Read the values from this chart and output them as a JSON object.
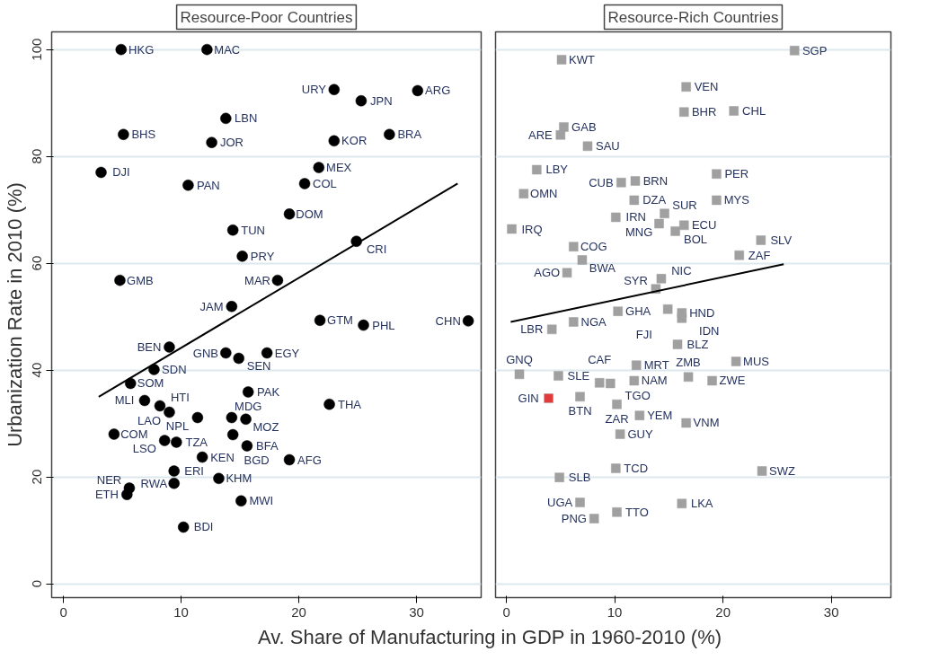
{
  "chart_data": [
    {
      "type": "scatter",
      "title": "Resource-Poor Countries",
      "xlabel": "Av. Share of Manufacturing in GDP in 1960-2010 (%)",
      "ylabel": "Urbanization Rate in 2010 (%)",
      "grid": "y",
      "xlim": [
        -1,
        35.5
      ],
      "ylim": [
        -2.6,
        103.3
      ],
      "xticks": [
        0,
        10,
        20,
        30
      ],
      "yticks": [
        0,
        20,
        40,
        60,
        80,
        100
      ],
      "series": [
        {
          "type": "scatter",
          "marker": "circle",
          "color": "#000000",
          "x": [
            4.9,
            12.2,
            23.0,
            25.3,
            30.1,
            13.8,
            5.1,
            12.6,
            23.0,
            27.7,
            3.2,
            21.7,
            10.6,
            20.5,
            19.2,
            14.4,
            24.9,
            15.2,
            4.8,
            18.2,
            14.3,
            34.4,
            21.8,
            25.5,
            9.0,
            13.8,
            14.9,
            17.3,
            7.7,
            5.7,
            15.7,
            6.9,
            22.6,
            8.2,
            9.0,
            11.4,
            14.3,
            15.5,
            4.3,
            8.6,
            9.6,
            14.4,
            15.6,
            11.8,
            19.2,
            9.4,
            13.2,
            9.4,
            5.6,
            5.4,
            15.1,
            10.2
          ],
          "values": [
            100,
            100,
            92.5,
            90.4,
            92.3,
            87.1,
            84.1,
            82.6,
            82.9,
            84.1,
            77.0,
            77.9,
            74.6,
            74.9,
            69.2,
            66.2,
            64.1,
            61.3,
            56.8,
            56.8,
            51.9,
            49.2,
            49.3,
            48.4,
            44.3,
            43.2,
            42.2,
            43.2,
            40.1,
            37.5,
            35.9,
            34.3,
            33.6,
            33.3,
            32.1,
            31.1,
            31.1,
            30.8,
            28.0,
            26.8,
            26.5,
            27.9,
            25.8,
            23.7,
            23.2,
            21.1,
            19.7,
            18.8,
            17.9,
            16.7,
            15.5,
            10.6
          ],
          "value_labels": [
            "HKG",
            "MAC",
            "URY",
            "JPN",
            "ARG",
            "LBN",
            "BHS",
            "JOR",
            "KOR",
            "BRA",
            "DJI",
            "MEX",
            "PAN",
            "COL",
            "DOM",
            "TUN",
            "CRI",
            "PRY",
            "GMB",
            "MAR",
            "JAM",
            "CHN",
            "GTM",
            "PHL",
            "BEN",
            "GNB",
            "SEN",
            "EGY",
            "SDN",
            "SOM",
            "PAK",
            "MLI",
            "THA",
            "HTI",
            "LAO",
            "NPL",
            "MDG",
            "MOZ",
            "COM",
            "LSO",
            "TZA",
            "BGD",
            "BFA",
            "KEN",
            "AFG",
            "ERI",
            "KHM",
            "RWA",
            "NER",
            "ETH",
            "MWI",
            "BDI"
          ]
        },
        {
          "type": "line",
          "marker": "none",
          "color": "#000000",
          "x": [
            3.0,
            33.5
          ],
          "values": [
            35.0,
            74.9
          ]
        }
      ]
    },
    {
      "type": "scatter",
      "title": "Resource-Rich Countries",
      "grid": "y",
      "xlim": [
        -1,
        35.5
      ],
      "ylim": [
        -2.6,
        103.3
      ],
      "xticks": [
        0,
        10,
        20,
        30
      ],
      "yticks": [
        0,
        20,
        40,
        60,
        80,
        100
      ],
      "tick_labels": "x",
      "series": [
        {
          "type": "scatter",
          "marker": "square",
          "color": "#a0a0a0",
          "x": [
            26.6,
            5.1,
            16.6,
            16.4,
            21.0,
            5.3,
            5.0,
            7.5,
            2.8,
            19.4,
            10.6,
            11.9,
            1.6,
            11.8,
            19.4,
            10.1,
            14.6,
            14.1,
            15.6,
            16.4,
            0.5,
            6.2,
            23.5,
            7.0,
            21.5,
            5.6,
            14.3,
            13.8,
            10.3,
            14.9,
            16.2,
            16.2,
            6.2,
            4.2,
            15.8,
            21.2,
            12.0,
            1.2,
            4.8,
            8.6,
            9.6,
            11.8,
            16.8,
            19.0,
            3.9,
            6.8,
            10.2,
            12.3,
            16.6,
            10.5,
            10.1,
            23.6,
            4.9,
            6.8,
            16.2,
            10.2,
            8.1
          ],
          "values": [
            99.8,
            98.1,
            93.0,
            88.3,
            88.5,
            85.5,
            84.0,
            81.9,
            77.5,
            76.7,
            75.1,
            75.4,
            73.0,
            71.8,
            71.8,
            68.6,
            69.3,
            67.4,
            66.0,
            67.1,
            66.4,
            63.1,
            64.3,
            60.6,
            61.5,
            58.2,
            57.1,
            55.2,
            51.0,
            51.4,
            50.7,
            49.7,
            49.0,
            47.6,
            44.8,
            41.6,
            40.9,
            39.2,
            38.9,
            37.6,
            37.5,
            38.0,
            38.7,
            38.0,
            34.7,
            35.0,
            33.6,
            31.5,
            30.1,
            28.0,
            21.6,
            21.1,
            19.9,
            15.2,
            15.0,
            13.4,
            12.2
          ],
          "colors": [
            "#a0a0a0",
            "#a0a0a0",
            "#a0a0a0",
            "#a0a0a0",
            "#a0a0a0",
            "#a0a0a0",
            "#a0a0a0",
            "#a0a0a0",
            "#a0a0a0",
            "#a0a0a0",
            "#a0a0a0",
            "#a0a0a0",
            "#a0a0a0",
            "#a0a0a0",
            "#a0a0a0",
            "#a0a0a0",
            "#a0a0a0",
            "#a0a0a0",
            "#a0a0a0",
            "#a0a0a0",
            "#a0a0a0",
            "#a0a0a0",
            "#a0a0a0",
            "#a0a0a0",
            "#a0a0a0",
            "#a0a0a0",
            "#a0a0a0",
            "#a0a0a0",
            "#a0a0a0",
            "#a0a0a0",
            "#a0a0a0",
            "#a0a0a0",
            "#a0a0a0",
            "#a0a0a0",
            "#a0a0a0",
            "#a0a0a0",
            "#a0a0a0",
            "#a0a0a0",
            "#a0a0a0",
            "#a0a0a0",
            "#a0a0a0",
            "#a0a0a0",
            "#a0a0a0",
            "#a0a0a0",
            "#e03a3a",
            "#a0a0a0",
            "#a0a0a0",
            "#a0a0a0",
            "#a0a0a0",
            "#a0a0a0",
            "#a0a0a0",
            "#a0a0a0",
            "#a0a0a0",
            "#a0a0a0",
            "#a0a0a0",
            "#a0a0a0",
            "#a0a0a0"
          ],
          "value_labels": [
            "SGP",
            "KWT",
            "VEN",
            "BHR",
            "CHL",
            "GAB",
            "ARE",
            "SAU",
            "LBY",
            "PER",
            "CUB",
            "BRN",
            "OMN",
            "DZA",
            "MYS",
            "IRN",
            "SUR",
            "MNG",
            "BOL",
            "ECU",
            "IRQ",
            "COG",
            "SLV",
            "BWA",
            "ZAF",
            "AGO",
            "NIC",
            "SYR",
            "GHA",
            "FJI",
            "HND",
            "IDN",
            "NGA",
            "LBR",
            "BLZ",
            "MUS",
            "MRT",
            "GNQ",
            "SLE",
            "CAF",
            "TGO",
            "NAM",
            "ZMB",
            "ZWE",
            "GIN",
            "BTN",
            "ZAR",
            "YEM",
            "VNM",
            "GUY",
            "TCD",
            "SWZ",
            "SLB",
            "UGA",
            "LKA",
            "TTO",
            "PNG"
          ]
        },
        {
          "type": "line",
          "marker": "none",
          "color": "#000000",
          "x": [
            0.4,
            25.6
          ],
          "values": [
            49.0,
            59.8
          ]
        }
      ]
    }
  ]
}
